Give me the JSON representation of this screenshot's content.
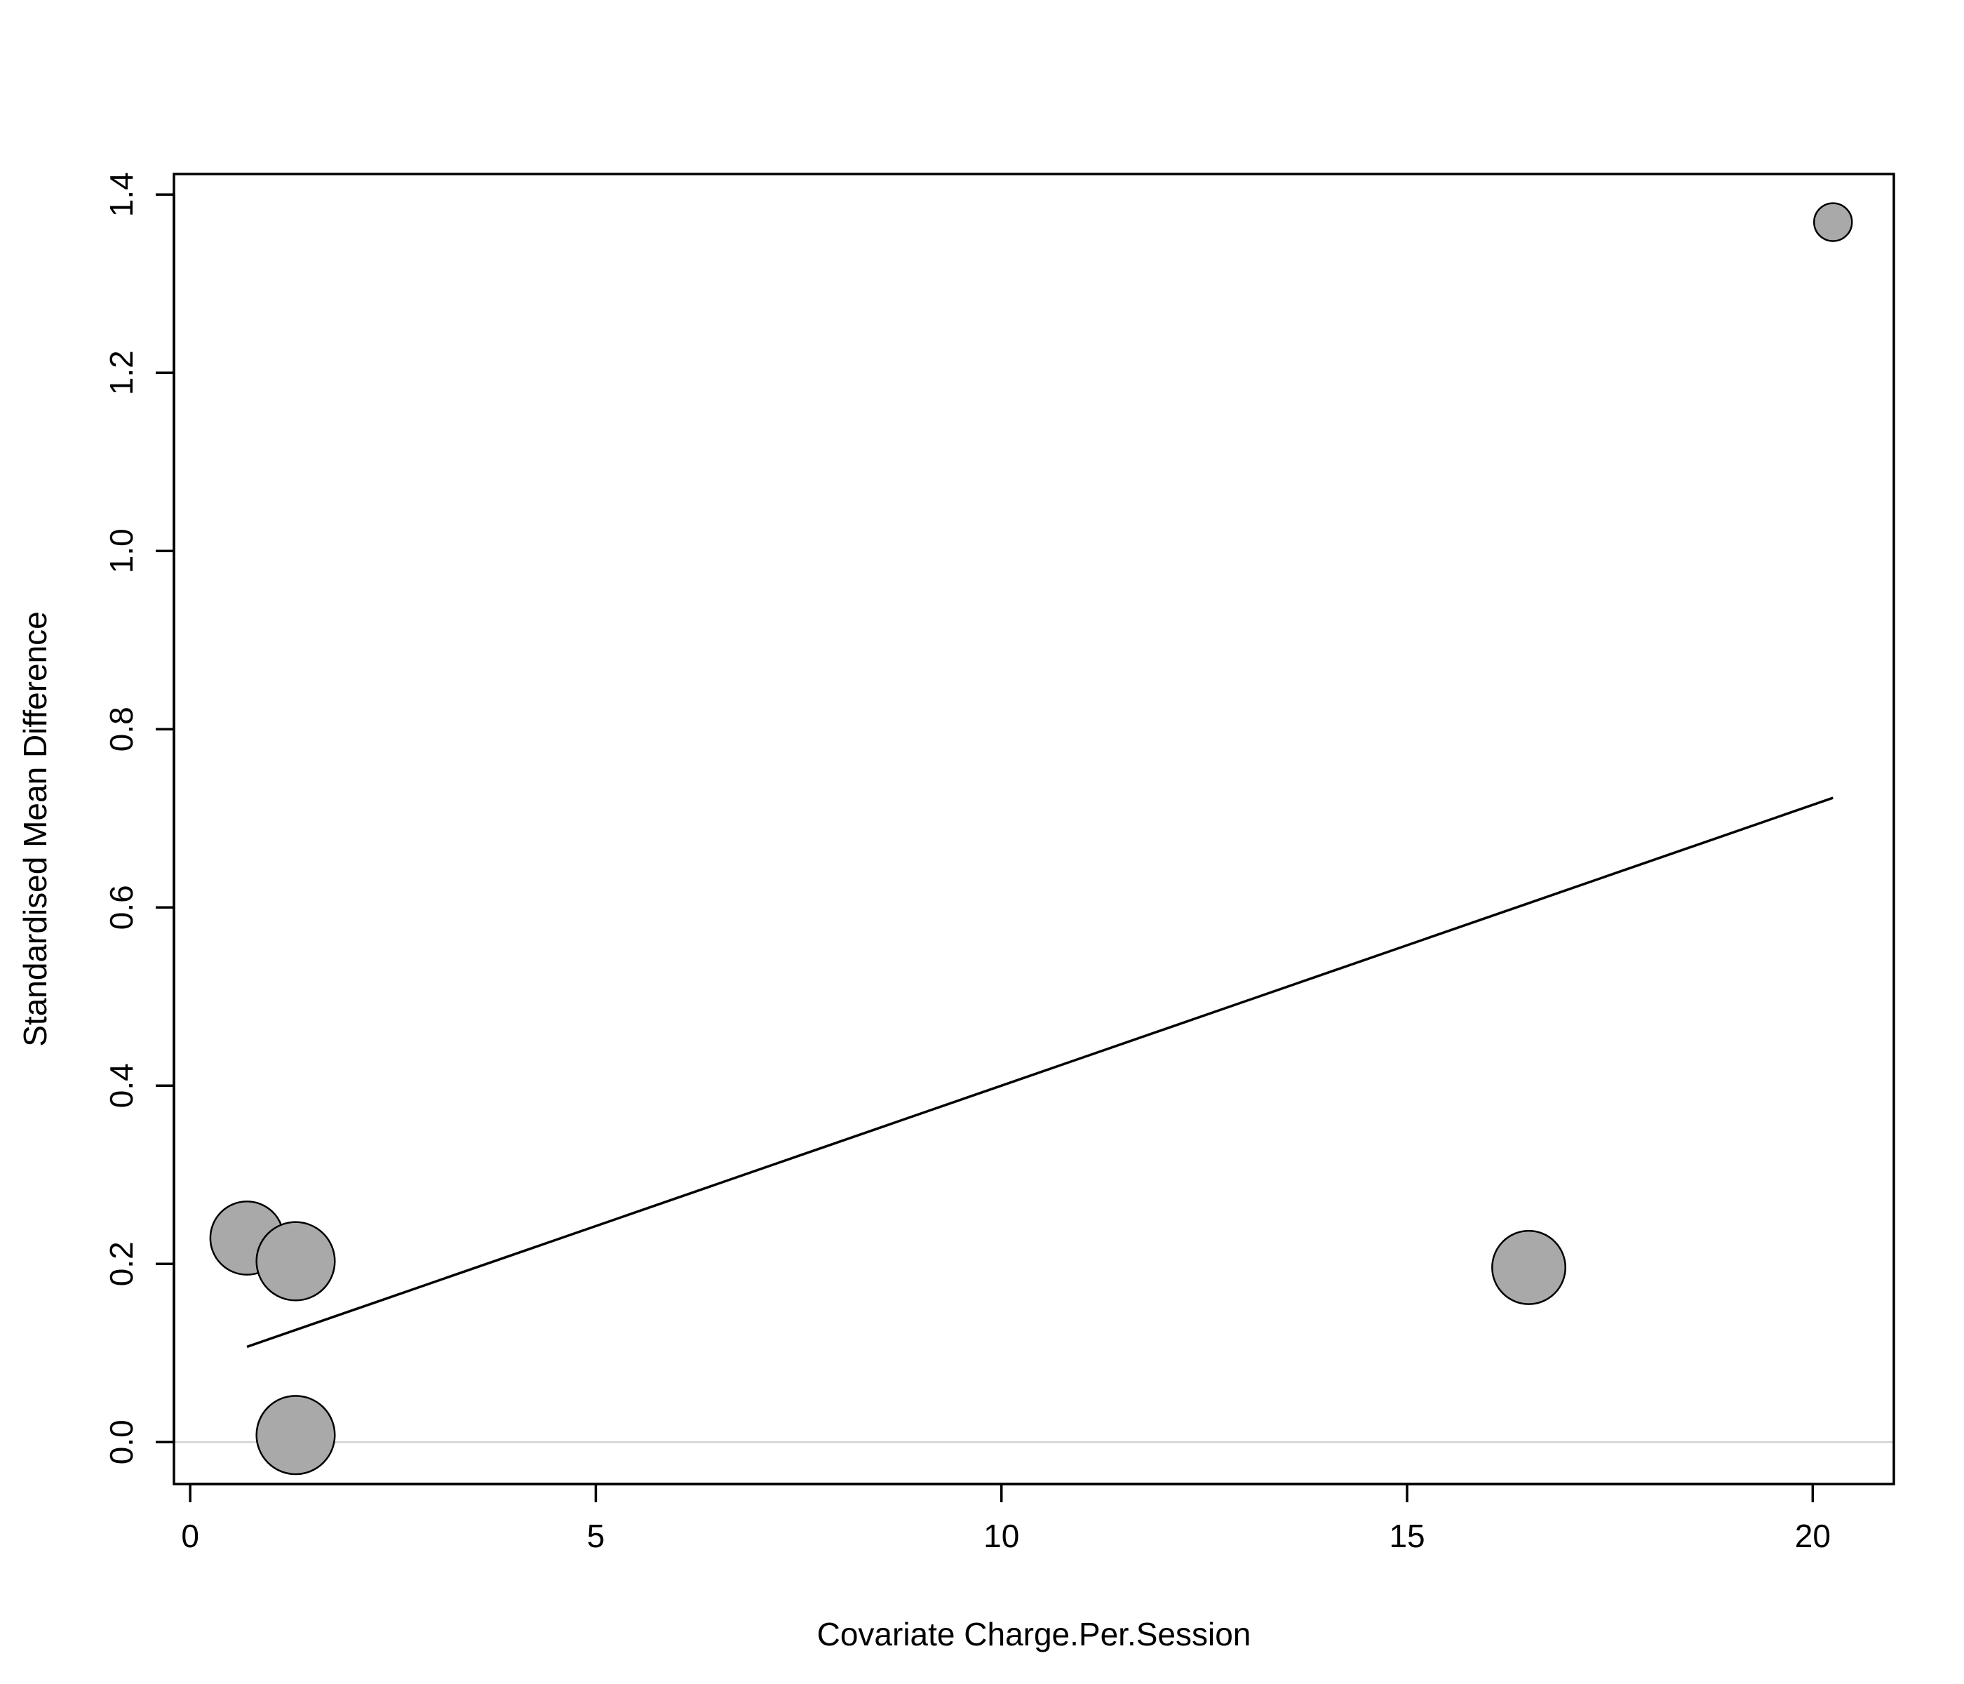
{
  "chart_data": {
    "type": "scatter",
    "title": "",
    "xlabel": "Covariate Charge.Per.Session",
    "ylabel": "Standardised Mean Difference",
    "xlim": [
      -0.2,
      21.0
    ],
    "ylim": [
      -0.047,
      1.423
    ],
    "x_ticks": [
      0,
      5,
      10,
      15,
      20
    ],
    "x_tick_labels": [
      "0",
      "5",
      "10",
      "15",
      "20"
    ],
    "y_ticks": [
      0.0,
      0.2,
      0.4,
      0.6,
      0.8,
      1.0,
      1.2,
      1.4
    ],
    "y_tick_labels": [
      "0.0",
      "0.2",
      "0.4",
      "0.6",
      "0.8",
      "1.0",
      "1.2",
      "1.4"
    ],
    "grid": false,
    "legend": "none",
    "points": [
      {
        "x": 0.7,
        "y": 0.229,
        "weight": 29
      },
      {
        "x": 1.3,
        "y": 0.203,
        "weight": 31
      },
      {
        "x": 1.3,
        "y": 0.008,
        "weight": 31
      },
      {
        "x": 16.5,
        "y": 0.196,
        "weight": 29
      },
      {
        "x": 20.25,
        "y": 1.369,
        "weight": 15
      }
    ],
    "regression_line": {
      "x": [
        0.7,
        20.25
      ],
      "y": [
        0.107,
        0.723
      ]
    },
    "reference_line": {
      "y": 0.0
    },
    "colors": {
      "point_fill": "#a9a9a9",
      "point_stroke": "#000000",
      "line": "#000000",
      "reference_line": "#d3d3d3"
    }
  }
}
